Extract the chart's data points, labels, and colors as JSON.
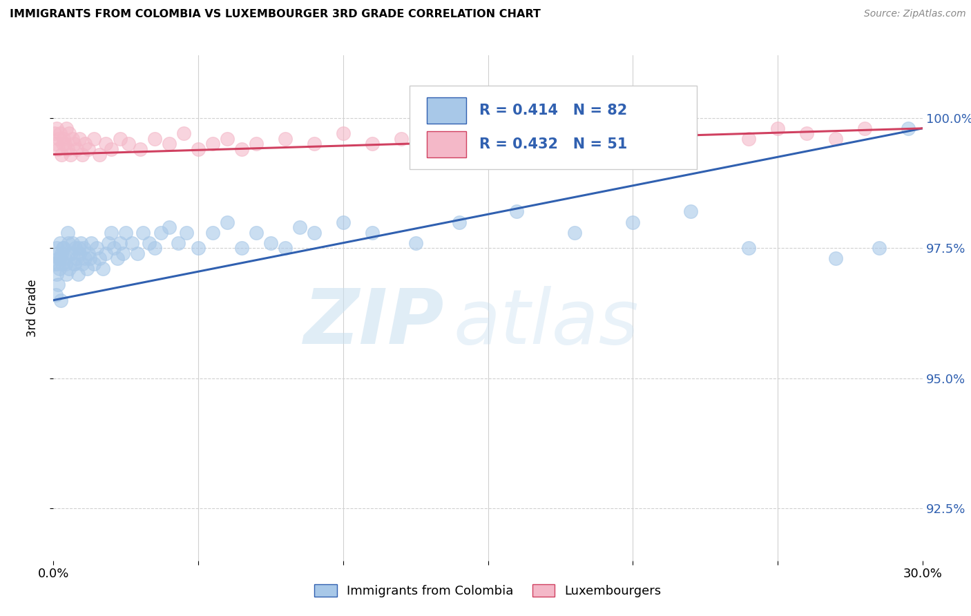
{
  "title": "IMMIGRANTS FROM COLOMBIA VS LUXEMBOURGER 3RD GRADE CORRELATION CHART",
  "source": "Source: ZipAtlas.com",
  "ylabel": "3rd Grade",
  "ylabel_right_ticks": [
    92.5,
    95.0,
    97.5,
    100.0
  ],
  "ylabel_right_labels": [
    "92.5%",
    "95.0%",
    "97.5%",
    "100.0%"
  ],
  "xmin": 0.0,
  "xmax": 30.0,
  "ymin": 91.5,
  "ymax": 101.2,
  "blue_R": 0.414,
  "blue_N": 82,
  "pink_R": 0.432,
  "pink_N": 51,
  "blue_color": "#a8c8e8",
  "pink_color": "#f4b8c8",
  "blue_line_color": "#3060b0",
  "pink_line_color": "#d04060",
  "legend_blue_label": "Immigrants from Colombia",
  "legend_pink_label": "Luxembourgers",
  "watermark_zip": "ZIP",
  "watermark_atlas": "atlas",
  "blue_scatter_x": [
    0.05,
    0.1,
    0.12,
    0.15,
    0.18,
    0.2,
    0.22,
    0.25,
    0.28,
    0.3,
    0.35,
    0.4,
    0.45,
    0.5,
    0.55,
    0.6,
    0.65,
    0.7,
    0.75,
    0.8,
    0.85,
    0.9,
    0.95,
    1.0,
    1.05,
    1.1,
    1.15,
    1.2,
    1.3,
    1.4,
    1.5,
    1.6,
    1.7,
    1.8,
    1.9,
    2.0,
    2.1,
    2.2,
    2.3,
    2.4,
    2.5,
    2.7,
    2.9,
    3.1,
    3.3,
    3.5,
    3.7,
    4.0,
    4.3,
    4.6,
    5.0,
    5.5,
    6.0,
    6.5,
    7.0,
    7.5,
    8.0,
    8.5,
    9.0,
    10.0,
    11.0,
    12.5,
    14.0,
    16.0,
    18.0,
    20.0,
    22.0,
    24.0,
    27.0,
    28.5,
    29.5,
    0.08,
    0.13,
    0.17,
    0.23,
    0.32,
    0.42,
    0.52,
    0.62,
    0.72,
    0.88,
    1.25
  ],
  "blue_scatter_y": [
    97.2,
    97.0,
    97.5,
    96.8,
    97.3,
    97.1,
    97.6,
    96.5,
    97.4,
    97.2,
    97.5,
    97.3,
    97.0,
    97.8,
    97.1,
    97.4,
    97.6,
    97.2,
    97.5,
    97.3,
    97.0,
    97.4,
    97.6,
    97.2,
    97.5,
    97.3,
    97.1,
    97.4,
    97.6,
    97.2,
    97.5,
    97.3,
    97.1,
    97.4,
    97.6,
    97.8,
    97.5,
    97.3,
    97.6,
    97.4,
    97.8,
    97.6,
    97.4,
    97.8,
    97.6,
    97.5,
    97.8,
    97.9,
    97.6,
    97.8,
    97.5,
    97.8,
    98.0,
    97.5,
    97.8,
    97.6,
    97.5,
    97.9,
    97.8,
    98.0,
    97.8,
    97.6,
    98.0,
    98.2,
    97.8,
    98.0,
    98.2,
    97.5,
    97.3,
    97.5,
    99.8,
    96.6,
    97.2,
    97.4,
    97.3,
    97.5,
    97.2,
    97.6,
    97.4,
    97.2,
    97.5,
    97.3
  ],
  "pink_scatter_x": [
    0.05,
    0.08,
    0.12,
    0.15,
    0.18,
    0.22,
    0.28,
    0.35,
    0.4,
    0.45,
    0.5,
    0.55,
    0.6,
    0.65,
    0.7,
    0.8,
    0.9,
    1.0,
    1.1,
    1.2,
    1.4,
    1.6,
    1.8,
    2.0,
    2.3,
    2.6,
    3.0,
    3.5,
    4.0,
    4.5,
    5.0,
    5.5,
    6.0,
    6.5,
    7.0,
    8.0,
    9.0,
    10.0,
    11.0,
    12.0,
    14.0,
    16.0,
    18.0,
    20.0,
    22.0,
    24.0,
    25.0,
    26.0,
    27.0,
    28.0,
    0.32
  ],
  "pink_scatter_y": [
    99.7,
    99.5,
    99.8,
    99.4,
    99.6,
    99.7,
    99.3,
    99.6,
    99.5,
    99.8,
    99.4,
    99.7,
    99.3,
    99.6,
    99.5,
    99.4,
    99.6,
    99.3,
    99.5,
    99.4,
    99.6,
    99.3,
    99.5,
    99.4,
    99.6,
    99.5,
    99.4,
    99.6,
    99.5,
    99.7,
    99.4,
    99.5,
    99.6,
    99.4,
    99.5,
    99.6,
    99.5,
    99.7,
    99.5,
    99.6,
    99.7,
    99.6,
    99.7,
    99.8,
    99.7,
    99.6,
    99.8,
    99.7,
    99.6,
    99.8,
    99.5
  ],
  "blue_line_x0": 0.0,
  "blue_line_x1": 30.0,
  "blue_line_y0": 96.5,
  "blue_line_y1": 99.8,
  "pink_line_x0": 0.0,
  "pink_line_x1": 30.0,
  "pink_line_y0": 99.3,
  "pink_line_y1": 99.8
}
